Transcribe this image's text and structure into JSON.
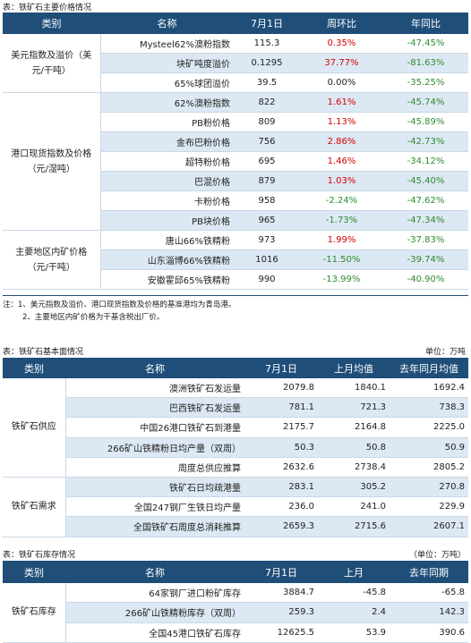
{
  "t1": {
    "caption": "表：铁矿石主要价格情况",
    "headers": [
      "类别",
      "名称",
      "7月1日",
      "周环比",
      "年同比"
    ],
    "groups": [
      {
        "category": "美元指数及溢价（美元/干吨）",
        "rows": [
          {
            "name": "Mysteel62%澳粉指数",
            "value": "115.3",
            "wow": "0.35%",
            "yoy": "-47.45%"
          },
          {
            "name": "块矿吨度溢价",
            "value": "0.1295",
            "wow": "37.77%",
            "yoy": "-81.63%"
          },
          {
            "name": "65%球团溢价",
            "value": "39.5",
            "wow": "0.00%",
            "yoy": "-35.25%"
          }
        ]
      },
      {
        "category": "港口现货指数及价格（元/湿吨）",
        "rows": [
          {
            "name": "62%澳粉指数",
            "value": "822",
            "wow": "1.61%",
            "yoy": "-45.74%"
          },
          {
            "name": "PB粉价格",
            "value": "809",
            "wow": "1.13%",
            "yoy": "-45.89%"
          },
          {
            "name": "金布巴粉价格",
            "value": "756",
            "wow": "2.86%",
            "yoy": "-42.73%"
          },
          {
            "name": "超特粉价格",
            "value": "695",
            "wow": "1.46%",
            "yoy": "-34.12%"
          },
          {
            "name": "巴混价格",
            "value": "879",
            "wow": "1.03%",
            "yoy": "-45.40%"
          },
          {
            "name": "卡粉价格",
            "value": "958",
            "wow": "-2.24%",
            "yoy": "-47.62%"
          },
          {
            "name": "PB块价格",
            "value": "965",
            "wow": "-1.73%",
            "yoy": "-47.34%"
          }
        ]
      },
      {
        "category": "主要地区内矿价格（元/干吨）",
        "rows": [
          {
            "name": "唐山66%铁精粉",
            "value": "973",
            "wow": "1.99%",
            "yoy": "-37.83%"
          },
          {
            "name": "山东淄博66%铁精粉",
            "value": "1016",
            "wow": "-11.50%",
            "yoy": "-39.74%"
          },
          {
            "name": "安徽霍邱65%铁精粉",
            "value": "990",
            "wow": "-13.99%",
            "yoy": "-40.90%"
          }
        ]
      }
    ],
    "note1": "注：1、美元指数及溢价、港口现货指数及价格的基准港均为青岛港。",
    "note2": "2、主要地区内矿价格为干基含税出厂价。"
  },
  "t2": {
    "caption": "表：铁矿石基本面情况",
    "unit": "单位：万吨",
    "headers": [
      "类别",
      "名称",
      "7月1日",
      "上月均值",
      "去年同月均值"
    ],
    "groups": [
      {
        "category": "铁矿石供应",
        "rows": [
          {
            "name": "澳洲铁矿石发运量",
            "v1": "2079.8",
            "v2": "1840.1",
            "v3": "1692.4"
          },
          {
            "name": "巴西铁矿石发运量",
            "v1": "781.1",
            "v2": "721.3",
            "v3": "738.3"
          },
          {
            "name": "中国26港口铁矿石到港量",
            "v1": "2175.7",
            "v2": "2164.8",
            "v3": "2225.0"
          },
          {
            "name": "266矿山铁精粉日均产量（双周）",
            "v1": "50.3",
            "v2": "50.8",
            "v3": "50.9"
          },
          {
            "name": "周度总供应推算",
            "v1": "2632.6",
            "v2": "2738.4",
            "v3": "2805.2"
          }
        ]
      },
      {
        "category": "铁矿石需求",
        "rows": [
          {
            "name": "铁矿石日均疏港量",
            "v1": "283.1",
            "v2": "305.2",
            "v3": "270.8"
          },
          {
            "name": "全国247钢厂生铁日均产量",
            "v1": "236.0",
            "v2": "241.0",
            "v3": "229.9"
          },
          {
            "name": "全国铁矿石周度总消耗推算",
            "v1": "2659.3",
            "v2": "2715.6",
            "v3": "2607.1"
          }
        ]
      }
    ]
  },
  "t3": {
    "caption": "表：铁矿石库存情况",
    "unit": "（单位：万吨）",
    "headers": [
      "类别",
      "名称",
      "7月1日",
      "上月",
      "去年同期"
    ],
    "groups": [
      {
        "category": "铁矿石库存",
        "rows": [
          {
            "name": "64家钢厂进口粉矿库存",
            "v1": "3884.7",
            "v2": "-45.8",
            "v3": "-65.8"
          },
          {
            "name": "266矿山铁精粉库存（双周）",
            "v1": "259.3",
            "v2": "2.4",
            "v3": "142.3"
          },
          {
            "name": "全国45港口铁矿石库存",
            "v1": "12625.5",
            "v2": "53.9",
            "v3": "390.6"
          }
        ]
      }
    ]
  },
  "colors": {
    "header_bg": "#1f4e79",
    "alt_row": "#dce8f3",
    "up": "#d60000",
    "down": "#2e8b2e"
  }
}
